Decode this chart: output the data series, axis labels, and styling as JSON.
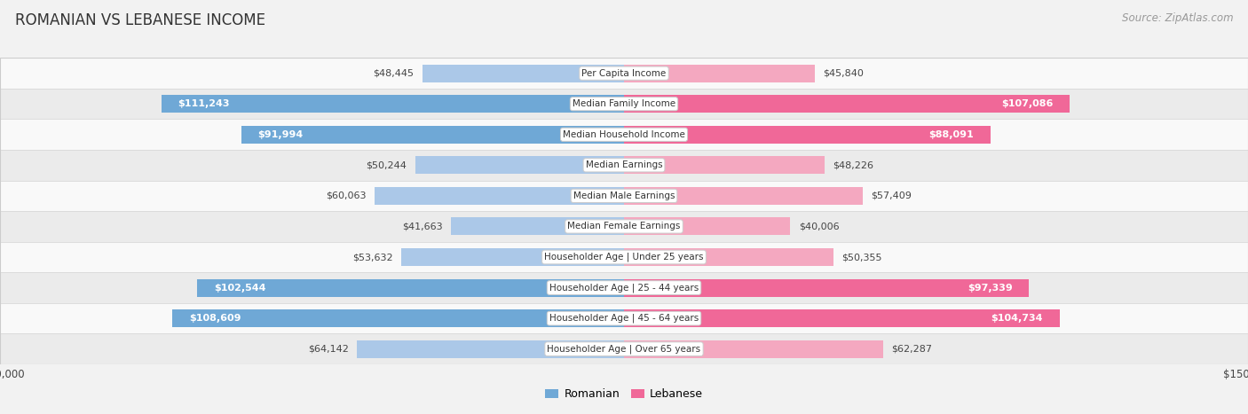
{
  "title": "ROMANIAN VS LEBANESE INCOME",
  "source": "Source: ZipAtlas.com",
  "categories": [
    "Per Capita Income",
    "Median Family Income",
    "Median Household Income",
    "Median Earnings",
    "Median Male Earnings",
    "Median Female Earnings",
    "Householder Age | Under 25 years",
    "Householder Age | 25 - 44 years",
    "Householder Age | 45 - 64 years",
    "Householder Age | Over 65 years"
  ],
  "romanian_values": [
    48445,
    111243,
    91994,
    50244,
    60063,
    41663,
    53632,
    102544,
    108609,
    64142
  ],
  "lebanese_values": [
    45840,
    107086,
    88091,
    48226,
    57409,
    40006,
    50355,
    97339,
    104734,
    62287
  ],
  "romanian_labels": [
    "$48,445",
    "$111,243",
    "$91,994",
    "$50,244",
    "$60,063",
    "$41,663",
    "$53,632",
    "$102,544",
    "$108,609",
    "$64,142"
  ],
  "lebanese_labels": [
    "$45,840",
    "$107,086",
    "$88,091",
    "$48,226",
    "$57,409",
    "$40,006",
    "$50,355",
    "$97,339",
    "$104,734",
    "$62,287"
  ],
  "max_value": 150000,
  "romanian_color_light": "#abc8e8",
  "romanian_color_dark": "#6fa8d6",
  "lebanese_color_light": "#f4a8c0",
  "lebanese_color_dark": "#f06898",
  "bg_color": "#f2f2f2",
  "row_color_odd": "#f9f9f9",
  "row_color_even": "#ebebeb",
  "row_border_color": "#d8d8d8",
  "label_threshold": 80000,
  "title_fontsize": 12,
  "source_fontsize": 8.5,
  "label_fontsize": 8,
  "category_fontsize": 7.5,
  "axis_fontsize": 8.5,
  "axis_label_color": "#444444",
  "dark_label_color": "#ffffff",
  "light_label_color": "#444444"
}
